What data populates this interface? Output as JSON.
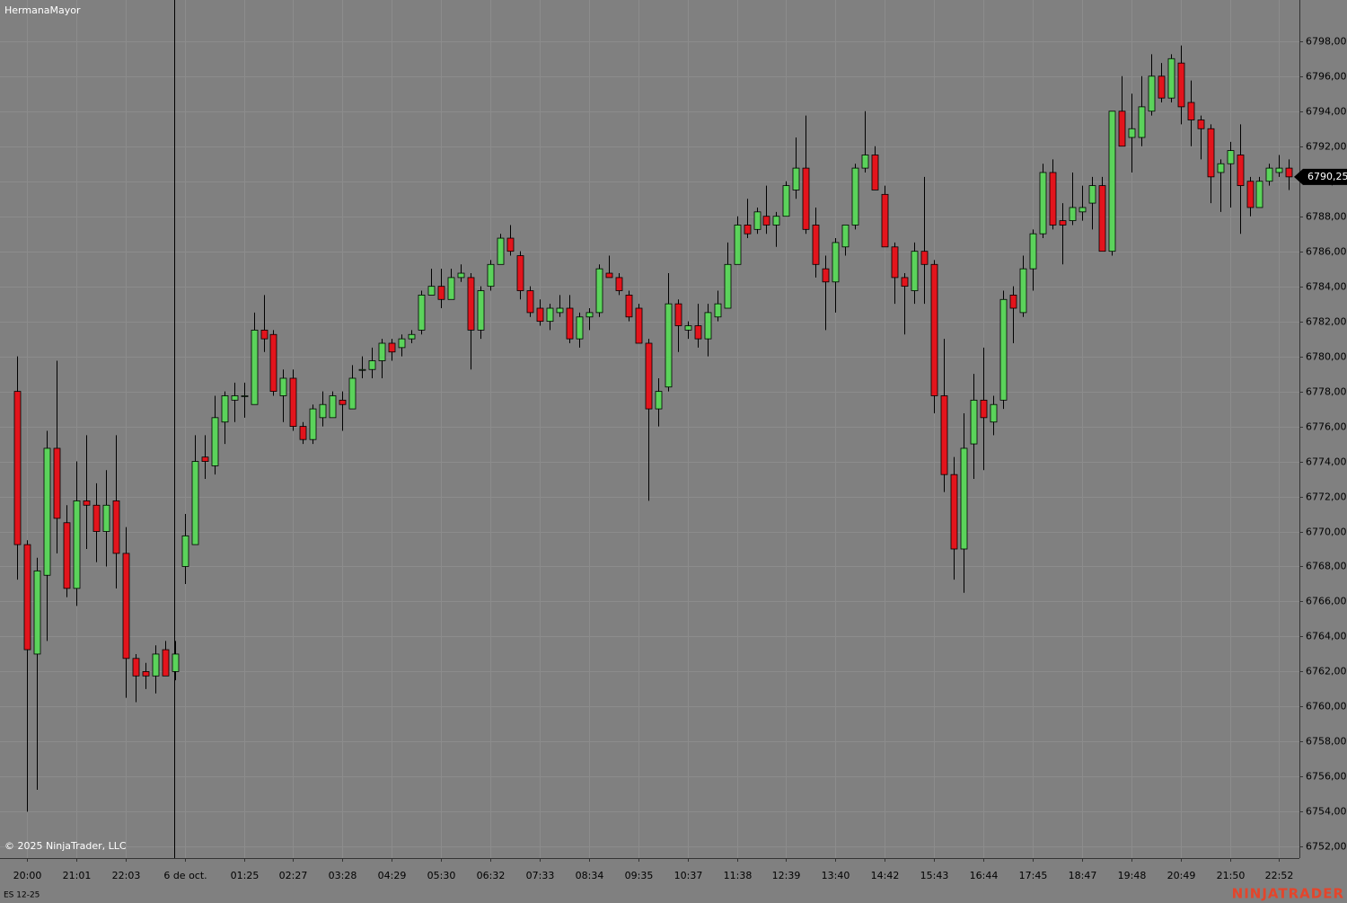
{
  "chart_data": {
    "type": "candlestick",
    "title": "HermanaMayor",
    "copyright": "© 2025 NinjaTrader, LLC",
    "instrument": "ES 12-25",
    "watermark": "NINJATRADER",
    "last_price": {
      "value": 6790.25,
      "label": "6790,25"
    },
    "up_color": "#5bd35b",
    "down_color": "#e3141c",
    "grid": true,
    "ylim": [
      6751.35,
      6800.35
    ],
    "yticks": [
      {
        "value": 6752,
        "label": "6752,00"
      },
      {
        "value": 6754,
        "label": "6754,00"
      },
      {
        "value": 6756,
        "label": "6756,00"
      },
      {
        "value": 6758,
        "label": "6758,00"
      },
      {
        "value": 6760,
        "label": "6760,00"
      },
      {
        "value": 6762,
        "label": "6762,00"
      },
      {
        "value": 6764,
        "label": "6764,00"
      },
      {
        "value": 6766,
        "label": "6766,00"
      },
      {
        "value": 6768,
        "label": "6768,00"
      },
      {
        "value": 6770,
        "label": "6770,00"
      },
      {
        "value": 6772,
        "label": "6772,00"
      },
      {
        "value": 6774,
        "label": "6774,00"
      },
      {
        "value": 6776,
        "label": "6776,00"
      },
      {
        "value": 6778,
        "label": "6778,00"
      },
      {
        "value": 6780,
        "label": "6780,00"
      },
      {
        "value": 6782,
        "label": "6782,00"
      },
      {
        "value": 6784,
        "label": "6784,00"
      },
      {
        "value": 6786,
        "label": "6786,00"
      },
      {
        "value": 6788,
        "label": "6788,00"
      },
      {
        "value": 6790,
        "label": "6790,00"
      },
      {
        "value": 6792,
        "label": "6792,00"
      },
      {
        "value": 6794,
        "label": "6794,00"
      },
      {
        "value": 6796,
        "label": "6796,00"
      },
      {
        "value": 6798,
        "label": "6798,00"
      }
    ],
    "categories": [
      null,
      "20:00",
      null,
      null,
      null,
      null,
      "21:01",
      null,
      null,
      null,
      null,
      "22:03",
      null,
      null,
      null,
      null,
      null,
      "6 de oct.",
      null,
      null,
      null,
      null,
      null,
      "01:25",
      null,
      null,
      null,
      null,
      "02:27",
      null,
      null,
      null,
      null,
      "03:28",
      null,
      null,
      null,
      null,
      "04:29",
      null,
      null,
      null,
      null,
      "05:30",
      null,
      null,
      null,
      null,
      "06:32",
      null,
      null,
      null,
      null,
      "07:33",
      null,
      null,
      null,
      null,
      "08:34",
      null,
      null,
      null,
      null,
      "09:35",
      null,
      null,
      null,
      null,
      "10:37",
      null,
      null,
      null,
      null,
      "11:38",
      null,
      null,
      null,
      null,
      "12:39",
      null,
      null,
      null,
      null,
      "13:40",
      null,
      null,
      null,
      null,
      "14:42",
      null,
      null,
      null,
      null,
      "15:43",
      null,
      null,
      null,
      null,
      "16:44",
      null,
      null,
      null,
      null,
      "17:45",
      null,
      null,
      null,
      null,
      "18:47",
      null,
      null,
      null,
      null,
      "19:48",
      null,
      null,
      null,
      null,
      "20:49",
      null,
      null,
      null,
      null,
      "21:50",
      null,
      null,
      null,
      null,
      "22:52",
      null
    ],
    "open": [
      6778,
      6769.25,
      6763,
      6767.5,
      6774.75,
      6770.5,
      6766.75,
      6771.75,
      6771.5,
      6770,
      6771.75,
      6768.75,
      6762.75,
      6762,
      6761.75,
      6763.25,
      6762,
      6768,
      6769.25,
      6774.25,
      6773.75,
      6776.25,
      6777.5,
      6777.75,
      6777.25,
      6781.5,
      6781.25,
      6777.75,
      6778.75,
      6776,
      6775.25,
      6776.5,
      6776.5,
      6777.5,
      6777,
      6779.25,
      6779.25,
      6779.75,
      6780.75,
      6780.5,
      6781,
      6781.5,
      6783.5,
      6784,
      6783.25,
      6784.5,
      6784.5,
      6781.5,
      6784,
      6785.25,
      6786.75,
      6785.75,
      6783.75,
      6782.75,
      6782,
      6782.5,
      6782.75,
      6781,
      6782.25,
      6782.5,
      6784.75,
      6784.5,
      6783.5,
      6782.75,
      6780.75,
      6777,
      6778.25,
      6783,
      6781.5,
      6781.75,
      6781,
      6782.25,
      6782.75,
      6785.25,
      6787.5,
      6787.25,
      6788,
      6787.5,
      6788,
      6789.5,
      6790.75,
      6787.5,
      6785,
      6784.25,
      6786.25,
      6787.5,
      6790.75,
      6791.5,
      6789.25,
      6786.25,
      6784.5,
      6783.75,
      6786,
      6785.25,
      6777.75,
      6773.25,
      6769,
      6775,
      6777.5,
      6776.25,
      6777.5,
      6783.5,
      6782.5,
      6785,
      6787,
      6790.5,
      6787.75,
      6787.75,
      6788.25,
      6788.75,
      6789.75,
      6786,
      6794,
      6792.5,
      6792.5,
      6794,
      6796,
      6794.75,
      6796.75,
      6794.5,
      6793.5,
      6793,
      6790.5,
      6791,
      6791.5,
      6790,
      6788.5,
      6790,
      6790.5,
      6790.75
    ],
    "high": [
      6780,
      6769.5,
      6768.5,
      6775.75,
      6779.75,
      6771.5,
      6774,
      6775.5,
      6772.75,
      6773.5,
      6775.5,
      6770.25,
      6763,
      6762.5,
      6763.5,
      6763.75,
      6763.75,
      6771,
      6775.5,
      6775.5,
      6777.75,
      6778,
      6778.5,
      6778.5,
      6782.5,
      6783.5,
      6781.5,
      6779.25,
      6779.25,
      6776.25,
      6777.25,
      6778,
      6778,
      6778,
      6779.5,
      6780,
      6780.5,
      6781,
      6781,
      6781.25,
      6781.5,
      6783.75,
      6785,
      6785,
      6785,
      6785.25,
      6784.75,
      6784,
      6785.5,
      6787,
      6787.5,
      6786,
      6784,
      6783.25,
      6783,
      6783.5,
      6783.5,
      6782.5,
      6782.75,
      6785.25,
      6785.75,
      6784.75,
      6783.75,
      6783,
      6781,
      6778.75,
      6784.75,
      6783.25,
      6782,
      6783,
      6783,
      6783.75,
      6786.5,
      6788,
      6789,
      6788.5,
      6789.75,
      6788.25,
      6790,
      6792.5,
      6793.75,
      6788.5,
      6785.75,
      6786.75,
      6787.5,
      6791,
      6794,
      6792,
      6789.75,
      6786.5,
      6784.75,
      6786.5,
      6790.25,
      6785.5,
      6781,
      6774.25,
      6776.75,
      6779,
      6780.5,
      6777.75,
      6783.75,
      6784,
      6785.75,
      6787.25,
      6791,
      6791.25,
      6788.75,
      6790.5,
      6789.75,
      6790.25,
      6790.25,
      6794,
      6796,
      6795,
      6796,
      6797.25,
      6796.75,
      6797.25,
      6797.75,
      6795.75,
      6793.75,
      6793.25,
      6791.25,
      6792.25,
      6793.25,
      6790.25,
      6790.25,
      6791,
      6791.5,
      6791.25
    ],
    "low": [
      6767.25,
      6754,
      6755.25,
      6763.75,
      6768.75,
      6766.25,
      6765.75,
      6769,
      6768.25,
      6768,
      6766.75,
      6760.5,
      6760.25,
      6761,
      6760.75,
      6761.75,
      6761.5,
      6767,
      6769.25,
      6773,
      6773.25,
      6775,
      6776.25,
      6776.5,
      6777.25,
      6780.25,
      6777.75,
      6776.25,
      6775.75,
      6775,
      6775,
      6776,
      6776.5,
      6775.75,
      6777,
      6778.75,
      6778.75,
      6778.75,
      6779.75,
      6780,
      6780.75,
      6781.25,
      6783.5,
      6782.75,
      6783.25,
      6784.25,
      6779.25,
      6781,
      6783.75,
      6785.25,
      6785.75,
      6783.25,
      6782.25,
      6781.75,
      6781.5,
      6782.25,
      6780.75,
      6780.5,
      6781.5,
      6782.25,
      6784.5,
      6783.5,
      6782,
      6780.75,
      6771.75,
      6776,
      6778,
      6780.25,
      6781,
      6780.5,
      6780,
      6782,
      6782.75,
      6785.25,
      6786.75,
      6787,
      6787,
      6786.25,
      6788,
      6789,
      6787,
      6784.5,
      6781.5,
      6782.5,
      6785.75,
      6787.25,
      6790.5,
      6789.5,
      6786.25,
      6783,
      6781.25,
      6783,
      6783,
      6776.75,
      6772.25,
      6767.25,
      6766.5,
      6773,
      6773.5,
      6775.5,
      6777,
      6780.75,
      6782.25,
      6783.75,
      6786.75,
      6787.25,
      6785.25,
      6787.5,
      6787.75,
      6787.25,
      6786,
      6785.75,
      6792,
      6790.5,
      6792,
      6793.75,
      6794.5,
      6794.5,
      6793.25,
      6792,
      6791.25,
      6788.75,
      6788.25,
      6788.5,
      6787,
      6788,
      6788.5,
      6789.75,
      6790.25,
      6789.5
    ],
    "close": [
      6769.25,
      6763.25,
      6767.75,
      6774.75,
      6770.75,
      6766.75,
      6771.75,
      6771.5,
      6770,
      6771.5,
      6768.75,
      6762.75,
      6761.75,
      6761.75,
      6763,
      6761.75,
      6763,
      6769.75,
      6774,
      6774,
      6776.5,
      6777.75,
      6777.75,
      6777.75,
      6781.5,
      6781,
      6778,
      6778.75,
      6776,
      6775.25,
      6777,
      6777.25,
      6777.75,
      6777.25,
      6778.75,
      6779.25,
      6779.75,
      6780.75,
      6780.25,
      6781,
      6781.25,
      6783.5,
      6784,
      6783.25,
      6784.5,
      6784.75,
      6781.5,
      6783.75,
      6785.25,
      6786.75,
      6786,
      6783.75,
      6782.5,
      6782,
      6782.75,
      6782.75,
      6781,
      6782.25,
      6782.5,
      6785,
      6784.5,
      6783.75,
      6782.25,
      6780.75,
      6777,
      6778,
      6783,
      6781.75,
      6781.75,
      6781,
      6782.5,
      6783,
      6785.25,
      6787.5,
      6787,
      6788.25,
      6787.5,
      6788,
      6789.75,
      6790.75,
      6787.25,
      6785.25,
      6784.25,
      6786.5,
      6787.5,
      6790.75,
      6791.5,
      6789.5,
      6786.25,
      6784.5,
      6784,
      6786,
      6785.25,
      6777.75,
      6773.25,
      6769,
      6774.75,
      6777.5,
      6776.5,
      6777.25,
      6783.25,
      6782.75,
      6785,
      6787,
      6790.5,
      6787.5,
      6787.5,
      6788.5,
      6788.5,
      6789.75,
      6786,
      6794,
      6792,
      6793,
      6794.25,
      6796,
      6794.75,
      6797,
      6794.25,
      6793.5,
      6793,
      6790.25,
      6791,
      6791.75,
      6789.75,
      6788.5,
      6790,
      6790.75,
      6790.75,
      6790.25
    ]
  }
}
